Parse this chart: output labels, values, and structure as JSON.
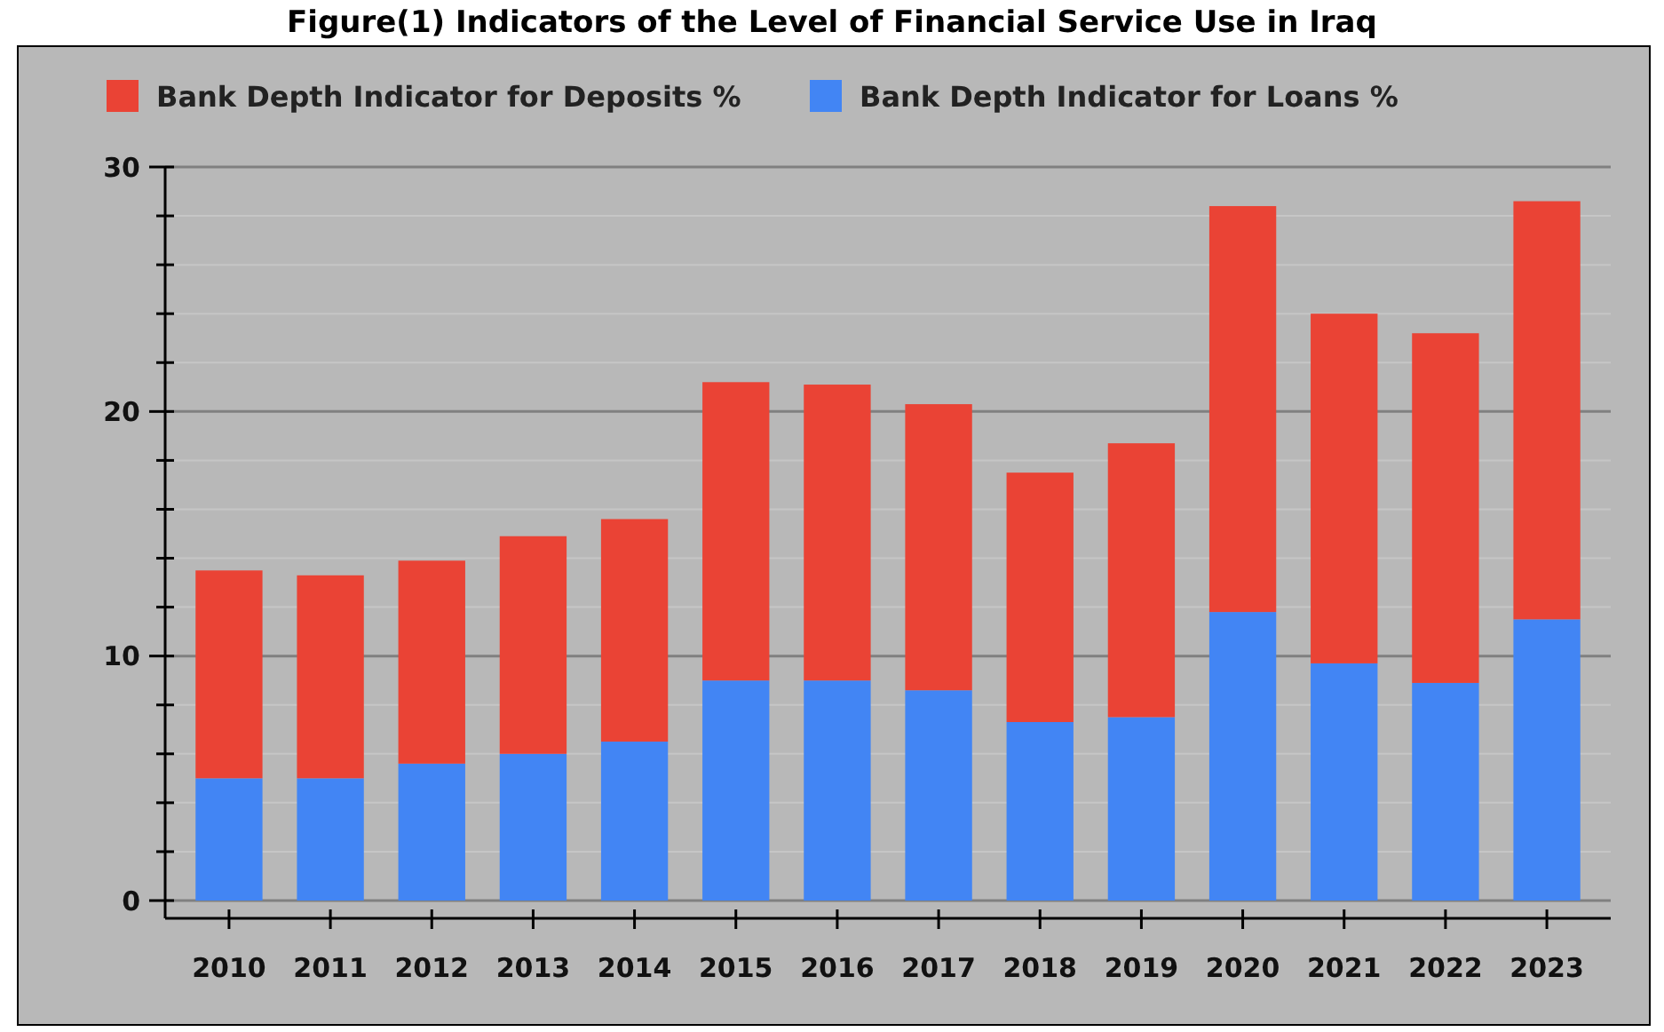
{
  "chart_data": {
    "type": "bar",
    "stacked": true,
    "title": "Figure(1) Indicators of the Level of Financial Service Use in Iraq",
    "categories": [
      "2010",
      "2011",
      "2012",
      "2013",
      "2014",
      "2015",
      "2016",
      "2017",
      "2018",
      "2019",
      "2020",
      "2021",
      "2022",
      "2023"
    ],
    "series": [
      {
        "name": "Bank Depth Indicator for Loans %",
        "color": "#4285f4",
        "values": [
          5.0,
          5.0,
          5.6,
          6.0,
          6.5,
          9.0,
          9.0,
          8.6,
          7.3,
          7.5,
          11.8,
          9.7,
          8.9,
          11.5
        ]
      },
      {
        "name": "Bank Depth Indicator for Deposits %",
        "color": "#ea4335",
        "values": [
          8.5,
          8.3,
          8.3,
          8.9,
          9.1,
          12.2,
          12.1,
          11.7,
          10.2,
          11.2,
          16.6,
          14.3,
          14.3,
          17.1
        ]
      }
    ],
    "ylim": [
      0,
      30
    ],
    "yticks": [
      0,
      {
        "value": 2,
        "label": null
      },
      {
        "value": 4,
        "label": null
      },
      {
        "value": 6,
        "label": null
      },
      {
        "value": 8,
        "label": null
      },
      10,
      {
        "value": 12,
        "label": null
      },
      {
        "value": 14,
        "label": null
      },
      {
        "value": 16,
        "label": null
      },
      {
        "value": 18,
        "label": null
      },
      20,
      {
        "value": 22,
        "label": null
      },
      {
        "value": 24,
        "label": null
      },
      {
        "value": 26,
        "label": null
      },
      {
        "value": 28,
        "label": null
      },
      30
    ],
    "grid": true,
    "legend": "top"
  }
}
